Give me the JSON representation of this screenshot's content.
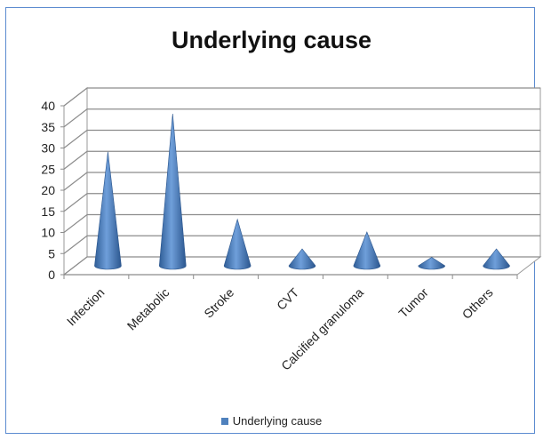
{
  "chart_data": {
    "type": "bar",
    "style": "3d-cone",
    "title": "Underlying cause",
    "categories": [
      "Infection",
      "Metabolic",
      "Stroke",
      "CVT",
      "Calcified granuloma",
      "Tumor",
      "Others"
    ],
    "series": [
      {
        "name": "Underlying cause",
        "values": [
          27,
          36,
          11,
          4,
          8,
          2,
          4
        ]
      }
    ],
    "ylim": [
      0,
      40
    ],
    "yticks": [
      0,
      5,
      10,
      15,
      20,
      25,
      30,
      35,
      40
    ],
    "grid": true,
    "legend": "bottom",
    "color": "#4f81bd"
  }
}
